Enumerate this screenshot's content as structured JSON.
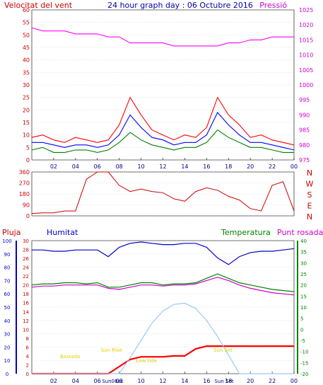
{
  "title": "24 hour graph day : 06 Octubre 2016",
  "chart_data": [
    {
      "id": "wind",
      "type": "line",
      "title_left": "Velocitat del vent",
      "title_right": "Pressió",
      "x": [
        0,
        1,
        2,
        3,
        4,
        5,
        6,
        7,
        8,
        9,
        10,
        11,
        12,
        13,
        14,
        15,
        16,
        17,
        18,
        19,
        20,
        21,
        22,
        23,
        24
      ],
      "xlim": [
        0,
        24
      ],
      "xticks": [
        "02",
        "04",
        "06",
        "08",
        "10",
        "12",
        "14",
        "16",
        "18",
        "20",
        "22",
        "00"
      ],
      "ylim_left": [
        0,
        60
      ],
      "yticks_left": [
        "0",
        "5",
        "10",
        "15",
        "20",
        "25",
        "30",
        "35",
        "40",
        "45",
        "50",
        "55",
        "60"
      ],
      "ylim_right": [
        975,
        1025
      ],
      "yticks_right": [
        "975",
        "980",
        "985",
        "990",
        "995",
        "1000",
        "1005",
        "1010",
        "1015",
        "1020",
        "1025"
      ],
      "series": [
        {
          "color": "#ff0000",
          "axis": "left",
          "values": [
            9,
            10,
            8,
            7,
            9,
            8,
            7,
            8,
            14,
            25,
            18,
            12,
            10,
            8,
            10,
            9,
            13,
            25,
            18,
            14,
            9,
            10,
            8,
            7,
            6
          ]
        },
        {
          "color": "#0000ff",
          "axis": "left",
          "values": [
            7,
            7,
            6,
            5,
            6,
            6,
            5,
            6,
            10,
            18,
            13,
            9,
            8,
            6,
            7,
            7,
            10,
            19,
            14,
            10,
            7,
            7,
            6,
            5,
            4
          ]
        },
        {
          "color": "#008000",
          "axis": "left",
          "values": [
            4,
            5,
            3,
            3,
            4,
            4,
            3,
            4,
            7,
            11,
            8,
            6,
            5,
            4,
            5,
            5,
            7,
            12,
            9,
            7,
            5,
            5,
            4,
            3,
            3
          ]
        },
        {
          "color": "#ff00ff",
          "axis": "right",
          "values": [
            1019,
            1018,
            1018,
            1018,
            1017,
            1017,
            1017,
            1016,
            1016,
            1014,
            1014,
            1014,
            1014,
            1013,
            1013,
            1013,
            1013,
            1013,
            1014,
            1014,
            1015,
            1015,
            1016,
            1016,
            1016
          ]
        }
      ]
    },
    {
      "id": "direction",
      "type": "line",
      "x": [
        0,
        1,
        2,
        3,
        4,
        5,
        6,
        7,
        8,
        9,
        10,
        11,
        12,
        13,
        14,
        15,
        16,
        17,
        18,
        19,
        20,
        21,
        22,
        23,
        24
      ],
      "xlim": [
        0,
        24
      ],
      "xticks": [
        "02",
        "04",
        "06",
        "08",
        "10",
        "12",
        "14",
        "16",
        "18",
        "20",
        "22",
        "00"
      ],
      "ylim": [
        0,
        360
      ],
      "yticks": [
        "0",
        "90",
        "180",
        "270",
        "360"
      ],
      "compass_labels": [
        "N",
        "W",
        "S",
        "E",
        "N"
      ],
      "series": [
        {
          "color": "#cc0000",
          "values": [
            20,
            25,
            25,
            40,
            40,
            300,
            360,
            360,
            250,
            200,
            220,
            200,
            190,
            140,
            120,
            200,
            230,
            210,
            160,
            130,
            60,
            40,
            250,
            280,
            40
          ]
        }
      ]
    },
    {
      "id": "temp-hum",
      "type": "line",
      "labels": {
        "rain": "Pluja",
        "humidity": "Humitat",
        "temperature": "Temperatura",
        "dewpoint": "Punt rosada"
      },
      "x": [
        0,
        1,
        2,
        3,
        4,
        5,
        6,
        7,
        8,
        9,
        10,
        11,
        12,
        13,
        14,
        15,
        16,
        17,
        18,
        19,
        20,
        21,
        22,
        23,
        24
      ],
      "xlim": [
        0,
        24
      ],
      "xticks": [
        "02",
        "04",
        "06",
        "08",
        "10",
        "12",
        "14",
        "16",
        "18",
        "20",
        "22",
        "00"
      ],
      "special_x_labels": [
        "Sun08ec",
        "Sun Set"
      ],
      "ylim_humidity": [
        0,
        100
      ],
      "yticks_humidity": [
        "0",
        "10",
        "20",
        "30",
        "40",
        "50",
        "60",
        "70",
        "80",
        "90",
        "100"
      ],
      "ylim_rain": [
        0,
        30
      ],
      "yticks_rain": [
        "0",
        "2",
        "4",
        "6",
        "8",
        "10",
        "12",
        "14",
        "16",
        "18",
        "20",
        "22",
        "24",
        "26",
        "28",
        "30"
      ],
      "ylim_temp": [
        -20,
        40
      ],
      "yticks_temp": [
        "-20",
        "-15",
        "-10",
        "-5",
        "0",
        "5",
        "10",
        "15",
        "20",
        "25",
        "30",
        "35",
        "40"
      ],
      "series": [
        {
          "name": "Humitat",
          "color": "#0000cc",
          "axis": "humidity",
          "values": [
            93,
            93,
            92,
            92,
            93,
            93,
            93,
            88,
            95,
            98,
            99,
            98,
            97,
            97,
            98,
            98,
            95,
            87,
            82,
            88,
            91,
            92,
            92,
            93,
            94
          ]
        },
        {
          "name": "Temperatura",
          "color": "#008000",
          "axis": "temp",
          "values": [
            20,
            20.5,
            20.5,
            21,
            21,
            20.5,
            21,
            19,
            19,
            20,
            21,
            21,
            20,
            20.5,
            20.5,
            21,
            23,
            25,
            23,
            21,
            20,
            19,
            18,
            17.5,
            17
          ]
        },
        {
          "name": "Punt rosada",
          "color": "#cc00cc",
          "axis": "temp",
          "values": [
            19,
            19.5,
            19.5,
            20,
            20,
            20,
            20,
            18.5,
            18,
            19,
            20,
            20,
            19.5,
            20,
            20,
            20.5,
            22,
            23.5,
            22,
            20,
            18.5,
            17.5,
            16.5,
            16,
            15.5
          ]
        },
        {
          "name": "Pluja",
          "color": "#ff0000",
          "axis": "rain",
          "values": [
            0,
            0,
            0,
            0,
            0,
            0,
            0,
            0,
            1.6,
            3.2,
            3.8,
            3.8,
            3.8,
            4.0,
            4.0,
            5.6,
            6.2,
            6.2,
            6.2,
            6.2,
            6.2,
            6.2,
            6.2,
            6.2,
            6.2
          ]
        },
        {
          "name": "solar",
          "color": "#9fc8f0",
          "axis": "humidity",
          "values": [
            0,
            0,
            0,
            0,
            0,
            0,
            0,
            0,
            0,
            12,
            25,
            38,
            47,
            52,
            53,
            49,
            40,
            28,
            14,
            0,
            0,
            0,
            0,
            0,
            0
          ]
        }
      ],
      "annotations": [
        "Baixada",
        "Sun Rise",
        "Low tide",
        "Sun Set"
      ]
    }
  ]
}
